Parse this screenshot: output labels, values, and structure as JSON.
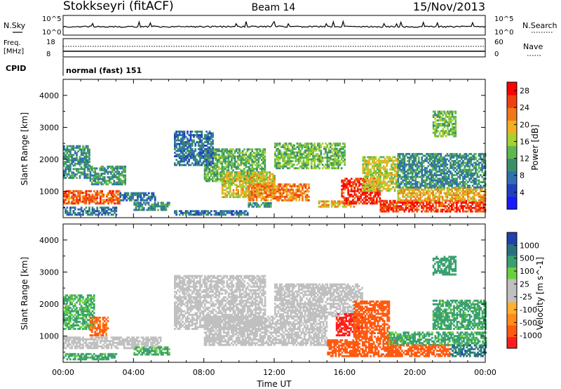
{
  "header": {
    "station": "Stokkseyri (fitACF)",
    "beam": "Beam 14",
    "date": "15/Nov/2013"
  },
  "strips": {
    "nsky": {
      "label": "N.Sky",
      "tick_top": "10^5",
      "tick_bottom": "10^0"
    },
    "nsearch": {
      "label": "N.Search",
      "tick_top": "10^5",
      "tick_bottom": "10^0"
    },
    "freq": {
      "label_line1": "Freq.",
      "label_line2": "[MHz]",
      "tick_top": "18",
      "tick_bottom": "8"
    },
    "nave": {
      "label": "Nave",
      "tick_top": "60",
      "tick_bottom": "0"
    },
    "cpid": {
      "label": "CPID",
      "program": "normal (fast) 151"
    }
  },
  "colors": {
    "power": [
      "#1a1aff",
      "#2040c0",
      "#3070b0",
      "#3a8f6a",
      "#5db850",
      "#a8d030",
      "#f0b020",
      "#f07818",
      "#f04010",
      "#ff0000"
    ],
    "velocity_neg": [
      "#ff1e1e",
      "#ff5a10",
      "#ff8c1a",
      "#ffb030"
    ],
    "velocity_gs": "#c0c0c0",
    "velocity_pos": [
      "#6ad040",
      "#3aa070",
      "#2a7080",
      "#2040b0"
    ]
  },
  "chart_data": [
    {
      "type": "heatmap",
      "name": "power",
      "ylabel": "Slant Range [km]",
      "xlabel": "Time UT",
      "xticks": [
        "00:00",
        "04:00",
        "08:00",
        "12:00",
        "16:00",
        "20:00",
        "00:00"
      ],
      "xlim_hours": [
        0,
        24
      ],
      "yticks": [
        "1000",
        "2000",
        "3000",
        "4000"
      ],
      "ylim_km": [
        180,
        4500
      ],
      "colorbar": {
        "label": "Power [dB]",
        "ticks": [
          "4",
          "8",
          "12",
          "16",
          "20",
          "24",
          "28"
        ],
        "range": [
          0,
          30
        ]
      },
      "regions": [
        {
          "t": [
            0.0,
            3.2
          ],
          "r": [
            600,
            1000
          ],
          "v": 24
        },
        {
          "t": [
            0.0,
            1.5
          ],
          "r": [
            1400,
            2400
          ],
          "v": 10
        },
        {
          "t": [
            1.5,
            3.5
          ],
          "r": [
            1200,
            1800
          ],
          "v": 11
        },
        {
          "t": [
            0.0,
            3.0
          ],
          "r": [
            250,
            500
          ],
          "v": 8
        },
        {
          "t": [
            3.2,
            5.2
          ],
          "r": [
            700,
            950
          ],
          "v": 8
        },
        {
          "t": [
            4.0,
            6.0
          ],
          "r": [
            400,
            650
          ],
          "v": 10
        },
        {
          "t": [
            6.3,
            10.5
          ],
          "r": [
            250,
            400
          ],
          "v": 8
        },
        {
          "t": [
            8.0,
            11.5
          ],
          "r": [
            1300,
            2300
          ],
          "v": 13
        },
        {
          "t": [
            9.0,
            12.0
          ],
          "r": [
            800,
            1600
          ],
          "v": 18
        },
        {
          "t": [
            10.5,
            14.0
          ],
          "r": [
            700,
            1200
          ],
          "v": 22
        },
        {
          "t": [
            12.0,
            16.0
          ],
          "r": [
            1700,
            2500
          ],
          "v": 14
        },
        {
          "t": [
            10.5,
            11.8
          ],
          "r": [
            500,
            650
          ],
          "v": 10
        },
        {
          "t": [
            14.5,
            16.5
          ],
          "r": [
            500,
            700
          ],
          "v": 20
        },
        {
          "t": [
            15.8,
            18.0
          ],
          "r": [
            600,
            1400
          ],
          "v": 27
        },
        {
          "t": [
            17.0,
            19.0
          ],
          "r": [
            1000,
            2100
          ],
          "v": 17
        },
        {
          "t": [
            18.0,
            24.0
          ],
          "r": [
            350,
            700
          ],
          "v": 26
        },
        {
          "t": [
            19.0,
            24.0
          ],
          "r": [
            700,
            1100
          ],
          "v": 20
        },
        {
          "t": [
            19.0,
            24.0
          ],
          "r": [
            1100,
            2200
          ],
          "v": 10
        },
        {
          "t": [
            21.0,
            22.3
          ],
          "r": [
            2700,
            3500
          ],
          "v": 14
        },
        {
          "t": [
            6.3,
            8.5
          ],
          "r": [
            1800,
            2900
          ],
          "v": 8
        }
      ]
    },
    {
      "type": "heatmap",
      "name": "velocity",
      "ylabel": "Slant Range [km]",
      "xlabel": "Time UT",
      "xticks": [
        "00:00",
        "04:00",
        "08:00",
        "12:00",
        "16:00",
        "20:00",
        "00:00"
      ],
      "xlim_hours": [
        0,
        24
      ],
      "yticks": [
        "1000",
        "2000",
        "3000",
        "4000"
      ],
      "ylim_km": [
        180,
        4500
      ],
      "colorbar": {
        "label": "Velocity [m s^-1]",
        "ticks": [
          "1000",
          "500",
          "100",
          "25",
          "-25",
          "-100",
          "-500",
          "-1000"
        ],
        "levels": [
          -1000,
          -500,
          -100,
          -25,
          25,
          100,
          500,
          1000
        ]
      },
      "regions": [
        {
          "t": [
            0.0,
            5.5
          ],
          "r": [
            600,
            950
          ],
          "v": 0
        },
        {
          "t": [
            0.0,
            1.8
          ],
          "r": [
            1200,
            2300
          ],
          "v": 120
        },
        {
          "t": [
            1.5,
            2.5
          ],
          "r": [
            1000,
            1600
          ],
          "v": -120
        },
        {
          "t": [
            0.0,
            3.0
          ],
          "r": [
            250,
            450
          ],
          "v": 150
        },
        {
          "t": [
            4.0,
            6.0
          ],
          "r": [
            400,
            650
          ],
          "v": 120
        },
        {
          "t": [
            6.3,
            11.5
          ],
          "r": [
            1200,
            2900
          ],
          "v": 0
        },
        {
          "t": [
            8.0,
            15.0
          ],
          "r": [
            700,
            1600
          ],
          "v": 0
        },
        {
          "t": [
            12.0,
            17.0
          ],
          "r": [
            1600,
            2600
          ],
          "v": 0
        },
        {
          "t": [
            15.5,
            17.0
          ],
          "r": [
            1000,
            1700
          ],
          "v": -800
        },
        {
          "t": [
            15.0,
            19.0
          ],
          "r": [
            350,
            900
          ],
          "v": -300
        },
        {
          "t": [
            16.5,
            18.5
          ],
          "r": [
            900,
            2100
          ],
          "v": -200
        },
        {
          "t": [
            18.5,
            24.0
          ],
          "r": [
            700,
            1100
          ],
          "v": 150
        },
        {
          "t": [
            18.5,
            22.0
          ],
          "r": [
            350,
            700
          ],
          "v": -200
        },
        {
          "t": [
            21.0,
            24.0
          ],
          "r": [
            1200,
            2100
          ],
          "v": 150
        },
        {
          "t": [
            21.0,
            22.3
          ],
          "r": [
            2900,
            3500
          ],
          "v": 200
        },
        {
          "t": [
            22.0,
            24.0
          ],
          "r": [
            350,
            700
          ],
          "v": 700
        }
      ]
    }
  ]
}
